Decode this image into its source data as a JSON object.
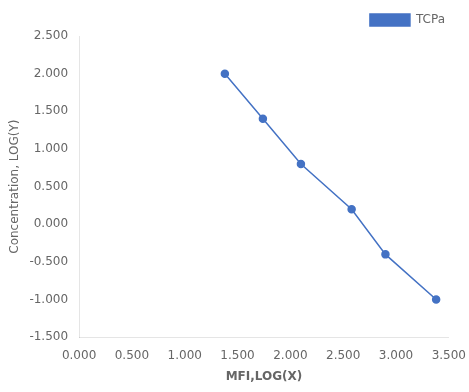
{
  "chart_data": {
    "type": "line",
    "x": [
      1.38,
      1.74,
      2.1,
      2.58,
      2.9,
      3.38
    ],
    "series": [
      {
        "name": "TCPa",
        "color": "#4472C4",
        "marker": "circle",
        "values": [
          2.0,
          1.4,
          0.8,
          0.2,
          -0.4,
          -1.0
        ]
      }
    ],
    "x_label": "MFI,LOG(X)",
    "y_label": "Concentration, LOG(Y)",
    "xlim": [
      0.0,
      3.5
    ],
    "ylim": [
      -1.5,
      2.5
    ],
    "xticks": [
      {
        "value": 0.0,
        "label": "0.000"
      },
      {
        "value": 0.5,
        "label": "0.500"
      },
      {
        "value": 1.0,
        "label": "1.000"
      },
      {
        "value": 1.5,
        "label": "1.500"
      },
      {
        "value": 2.0,
        "label": "2.000"
      },
      {
        "value": 2.5,
        "label": "2.500"
      },
      {
        "value": 3.0,
        "label": "3.000"
      },
      {
        "value": 3.5,
        "label": "3.500"
      }
    ],
    "yticks": [
      {
        "value": -1.5,
        "label": "-1.500"
      },
      {
        "value": -1.0,
        "label": "-1.000"
      },
      {
        "value": -0.5,
        "label": "-0.500"
      },
      {
        "value": 0.0,
        "label": "0.000"
      },
      {
        "value": 0.5,
        "label": "0.500"
      },
      {
        "value": 1.0,
        "label": "1.000"
      },
      {
        "value": 1.5,
        "label": "1.500"
      },
      {
        "value": 2.0,
        "label": "2.000"
      },
      {
        "value": 2.5,
        "label": "2.500"
      }
    ],
    "grid": false,
    "legend": "upper right"
  }
}
